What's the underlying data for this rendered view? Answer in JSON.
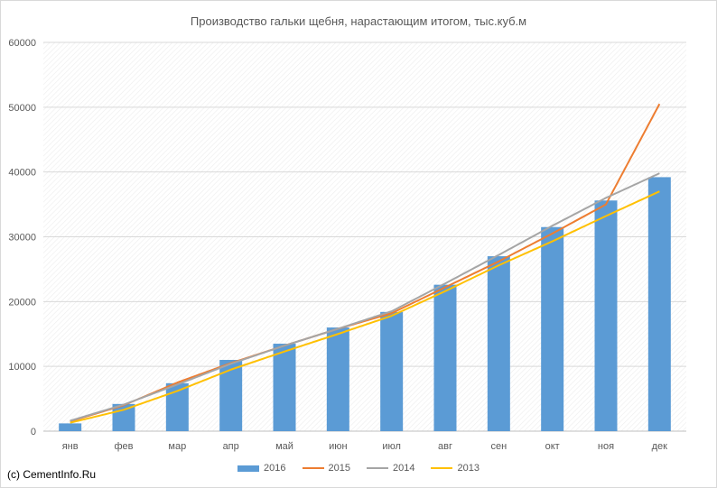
{
  "chart_data": {
    "type": "bar",
    "title": "Производство гальки щебня, нарастающим итогом, тыс.куб.м",
    "categories": [
      "янв",
      "фев",
      "мар",
      "апр",
      "май",
      "июн",
      "июл",
      "авг",
      "сен",
      "окт",
      "ноя",
      "дек"
    ],
    "ylim": [
      0,
      60000
    ],
    "yticks": [
      "0",
      "10000",
      "20000",
      "30000",
      "40000",
      "50000",
      "60000"
    ],
    "grid": true,
    "legend_position": "bottom",
    "series": [
      {
        "name": "2016",
        "type": "bar",
        "color": "#5b9bd5",
        "values": [
          1200,
          4200,
          7400,
          11000,
          13500,
          16000,
          18400,
          22600,
          27000,
          31500,
          35600,
          39200
        ]
      },
      {
        "name": "2015",
        "type": "line",
        "color": "#ed7d31",
        "values": [
          1500,
          4000,
          7500,
          10500,
          13200,
          15800,
          18200,
          22200,
          26200,
          30500,
          35000,
          50500
        ]
      },
      {
        "name": "2014",
        "type": "line",
        "color": "#a5a5a5",
        "values": [
          1600,
          4100,
          7200,
          10400,
          13200,
          15800,
          18500,
          22800,
          27200,
          31700,
          36000,
          39800
        ]
      },
      {
        "name": "2013",
        "type": "line",
        "color": "#ffc000",
        "values": [
          1300,
          3300,
          6200,
          9500,
          12300,
          15000,
          17800,
          21600,
          25600,
          29300,
          33200,
          37000
        ]
      }
    ]
  },
  "source_note": "(c) CementInfo.Ru"
}
